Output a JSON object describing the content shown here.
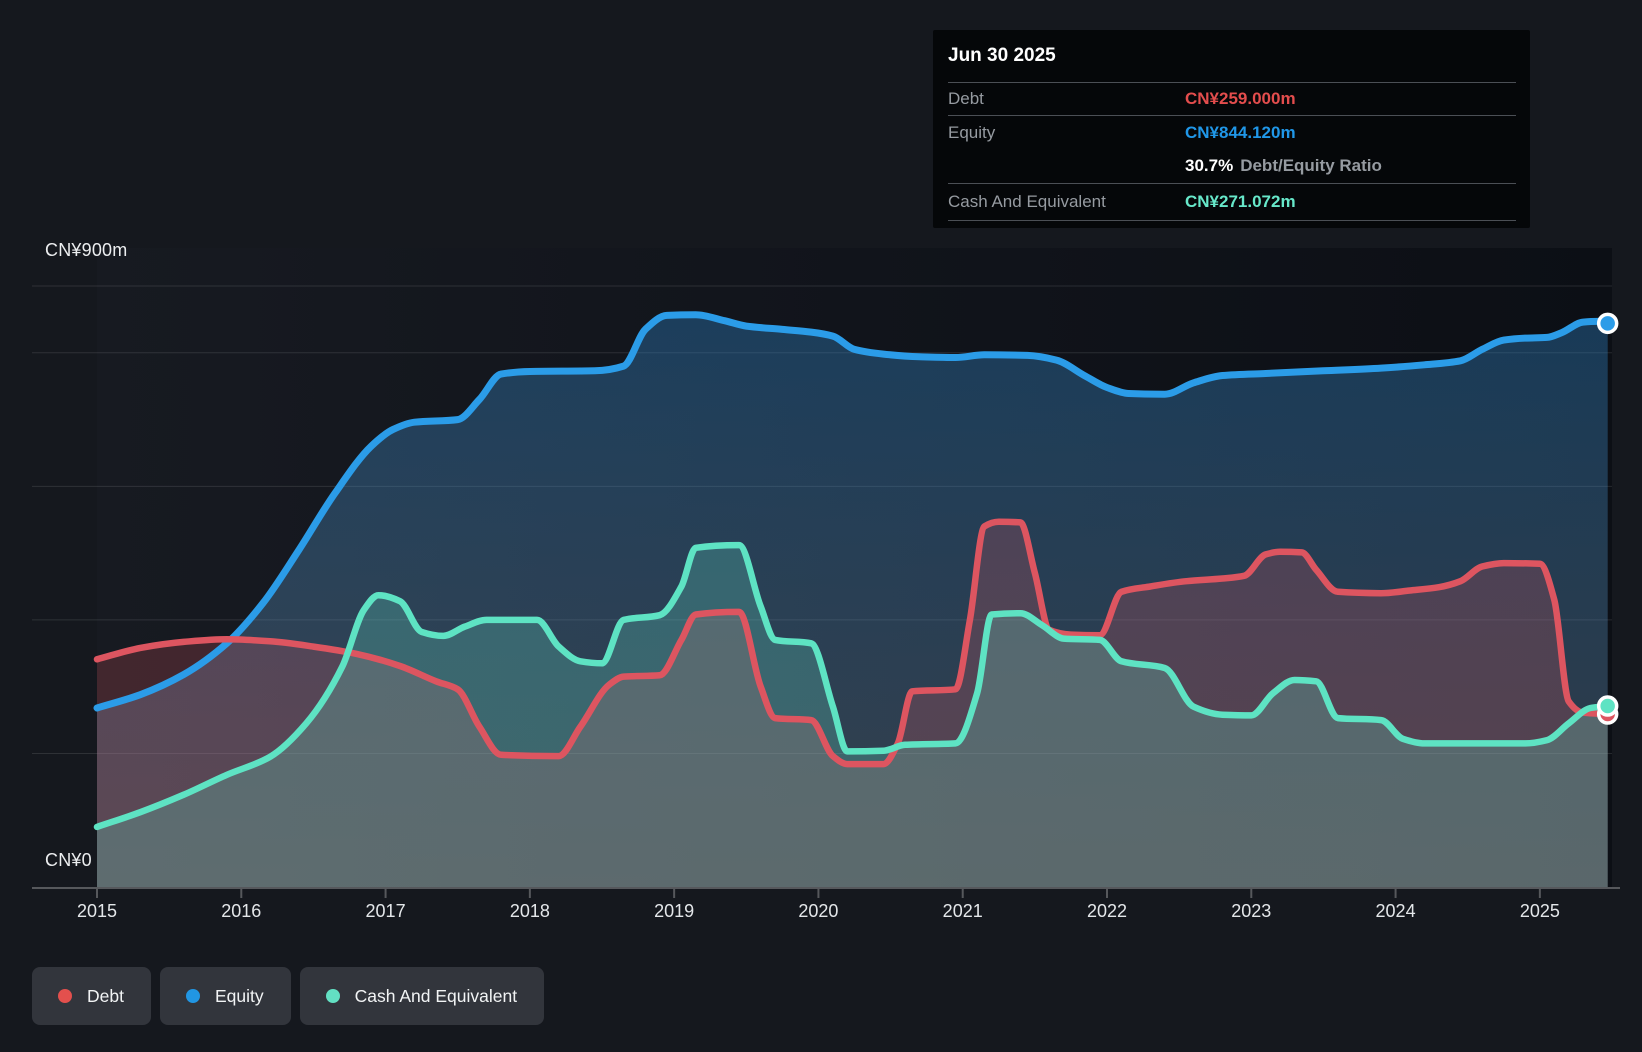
{
  "tooltip": {
    "date": "Jun 30 2025",
    "rows": [
      {
        "label": "Debt",
        "value": "CN¥259.000m",
        "color": "#e34d4d"
      },
      {
        "label": "Equity",
        "value": "CN¥844.120m",
        "color": "#2097e8"
      },
      {
        "label": "Cash And Equivalent",
        "value": "CN¥271.072m",
        "color": "#67e8ca"
      }
    ],
    "ratio": {
      "value": "30.7%",
      "label": "Debt/Equity Ratio"
    }
  },
  "axis": {
    "y_max_label": "CN¥900m",
    "y_min_label": "CN¥0",
    "years": [
      "2015",
      "2016",
      "2017",
      "2018",
      "2019",
      "2020",
      "2021",
      "2022",
      "2023",
      "2024",
      "2025"
    ]
  },
  "legend": {
    "items": [
      {
        "label": "Debt",
        "color": "#e3504d"
      },
      {
        "label": "Equity",
        "color": "#2196e3"
      },
      {
        "label": "Cash And Equivalent",
        "color": "#63e0c3"
      }
    ]
  },
  "chart_data": {
    "type": "area",
    "unit": "CN¥ millions",
    "ylim": [
      0,
      900
    ],
    "y_gridline_values": [
      900,
      800,
      600,
      400,
      200
    ],
    "x_range": [
      2015,
      2025.5
    ],
    "x_tick_years": [
      2015,
      2016,
      2017,
      2018,
      2019,
      2020,
      2021,
      2022,
      2023,
      2024,
      2025
    ],
    "last_point_date": "Jun 30 2025",
    "series": [
      {
        "name": "Equity",
        "color": "#2b9ce8",
        "line_width": 7,
        "fill": "gradient",
        "points": [
          [
            2015,
            268
          ],
          [
            2015.3,
            288
          ],
          [
            2015.6,
            318
          ],
          [
            2015.9,
            365
          ],
          [
            2016.15,
            425
          ],
          [
            2016.4,
            505
          ],
          [
            2016.65,
            590
          ],
          [
            2016.9,
            660
          ],
          [
            2017.05,
            685
          ],
          [
            2017.2,
            696
          ],
          [
            2017.5,
            700
          ],
          [
            2017.65,
            730
          ],
          [
            2017.8,
            768
          ],
          [
            2018,
            772
          ],
          [
            2018.45,
            773
          ],
          [
            2018.65,
            780
          ],
          [
            2018.8,
            835
          ],
          [
            2018.95,
            856
          ],
          [
            2019.15,
            857
          ],
          [
            2019.35,
            848
          ],
          [
            2019.5,
            840
          ],
          [
            2019.75,
            835
          ],
          [
            2019.95,
            831
          ],
          [
            2020.1,
            825
          ],
          [
            2020.25,
            805
          ],
          [
            2020.45,
            798
          ],
          [
            2020.7,
            794
          ],
          [
            2020.95,
            793
          ],
          [
            2021.15,
            797
          ],
          [
            2021.45,
            796
          ],
          [
            2021.65,
            789
          ],
          [
            2021.85,
            765
          ],
          [
            2022,
            748
          ],
          [
            2022.15,
            739
          ],
          [
            2022.4,
            738
          ],
          [
            2022.6,
            755
          ],
          [
            2022.8,
            766
          ],
          [
            2023.1,
            769
          ],
          [
            2023.5,
            773
          ],
          [
            2023.9,
            777
          ],
          [
            2024.2,
            782
          ],
          [
            2024.45,
            788
          ],
          [
            2024.6,
            805
          ],
          [
            2024.75,
            819
          ],
          [
            2024.9,
            822
          ],
          [
            2025.05,
            823
          ],
          [
            2025.15,
            830
          ],
          [
            2025.3,
            846
          ],
          [
            2025.4,
            847
          ],
          [
            2025.47,
            844.12
          ]
        ]
      },
      {
        "name": "Debt",
        "color": "#dd5560",
        "line_width": 6.5,
        "fill": "rgba(225,85,95,0.22)",
        "points": [
          [
            2015,
            341
          ],
          [
            2015.3,
            358
          ],
          [
            2015.6,
            367
          ],
          [
            2015.9,
            371
          ],
          [
            2016.2,
            368
          ],
          [
            2016.5,
            360
          ],
          [
            2016.8,
            349
          ],
          [
            2017.1,
            331
          ],
          [
            2017.35,
            308
          ],
          [
            2017.5,
            296
          ],
          [
            2017.65,
            240
          ],
          [
            2017.8,
            198
          ],
          [
            2018.2,
            196
          ],
          [
            2018.35,
            240
          ],
          [
            2018.55,
            303
          ],
          [
            2018.65,
            315
          ],
          [
            2018.9,
            317
          ],
          [
            2019.05,
            370
          ],
          [
            2019.15,
            408
          ],
          [
            2019.45,
            412
          ],
          [
            2019.6,
            300
          ],
          [
            2019.7,
            253
          ],
          [
            2019.95,
            250
          ],
          [
            2020.1,
            196
          ],
          [
            2020.2,
            184
          ],
          [
            2020.45,
            184
          ],
          [
            2020.55,
            215
          ],
          [
            2020.65,
            293
          ],
          [
            2020.95,
            296
          ],
          [
            2021.05,
            400
          ],
          [
            2021.15,
            540
          ],
          [
            2021.25,
            547
          ],
          [
            2021.4,
            546
          ],
          [
            2021.5,
            470
          ],
          [
            2021.6,
            385
          ],
          [
            2021.75,
            378
          ],
          [
            2021.95,
            377
          ],
          [
            2022.1,
            442
          ],
          [
            2022.3,
            450
          ],
          [
            2022.55,
            458
          ],
          [
            2022.8,
            462
          ],
          [
            2022.95,
            466
          ],
          [
            2023.1,
            498
          ],
          [
            2023.2,
            502
          ],
          [
            2023.35,
            501
          ],
          [
            2023.45,
            475
          ],
          [
            2023.6,
            442
          ],
          [
            2023.9,
            440
          ],
          [
            2024.1,
            444
          ],
          [
            2024.3,
            449
          ],
          [
            2024.45,
            458
          ],
          [
            2024.6,
            480
          ],
          [
            2024.75,
            485
          ],
          [
            2025,
            484
          ],
          [
            2025.1,
            430
          ],
          [
            2025.2,
            278
          ],
          [
            2025.3,
            261
          ],
          [
            2025.47,
            259
          ]
        ]
      },
      {
        "name": "Cash And Equivalent",
        "color": "#5ee3c3",
        "line_width": 6.5,
        "fill": "rgba(100,226,199,0.24)",
        "points": [
          [
            2015,
            90
          ],
          [
            2015.3,
            112
          ],
          [
            2015.6,
            138
          ],
          [
            2015.9,
            168
          ],
          [
            2016.2,
            195
          ],
          [
            2016.45,
            245
          ],
          [
            2016.7,
            330
          ],
          [
            2016.85,
            415
          ],
          [
            2016.95,
            437
          ],
          [
            2017.1,
            428
          ],
          [
            2017.25,
            382
          ],
          [
            2017.4,
            376
          ],
          [
            2017.55,
            390
          ],
          [
            2017.7,
            400
          ],
          [
            2018.05,
            400
          ],
          [
            2018.2,
            360
          ],
          [
            2018.35,
            338
          ],
          [
            2018.5,
            335
          ],
          [
            2018.65,
            400
          ],
          [
            2018.9,
            407
          ],
          [
            2019.05,
            450
          ],
          [
            2019.15,
            508
          ],
          [
            2019.45,
            512
          ],
          [
            2019.6,
            420
          ],
          [
            2019.7,
            370
          ],
          [
            2019.95,
            365
          ],
          [
            2020.1,
            270
          ],
          [
            2020.2,
            203
          ],
          [
            2020.45,
            204
          ],
          [
            2020.6,
            213
          ],
          [
            2020.95,
            215
          ],
          [
            2021.1,
            290
          ],
          [
            2021.2,
            408
          ],
          [
            2021.4,
            410
          ],
          [
            2021.55,
            392
          ],
          [
            2021.7,
            372
          ],
          [
            2021.95,
            370
          ],
          [
            2022.1,
            338
          ],
          [
            2022.4,
            328
          ],
          [
            2022.6,
            270
          ],
          [
            2022.8,
            258
          ],
          [
            2023,
            257
          ],
          [
            2023.15,
            290
          ],
          [
            2023.3,
            310
          ],
          [
            2023.45,
            308
          ],
          [
            2023.6,
            253
          ],
          [
            2023.9,
            250
          ],
          [
            2024.05,
            222
          ],
          [
            2024.2,
            215
          ],
          [
            2024.9,
            215
          ],
          [
            2025.05,
            220
          ],
          [
            2025.2,
            245
          ],
          [
            2025.35,
            268
          ],
          [
            2025.47,
            271.072
          ]
        ]
      }
    ]
  }
}
